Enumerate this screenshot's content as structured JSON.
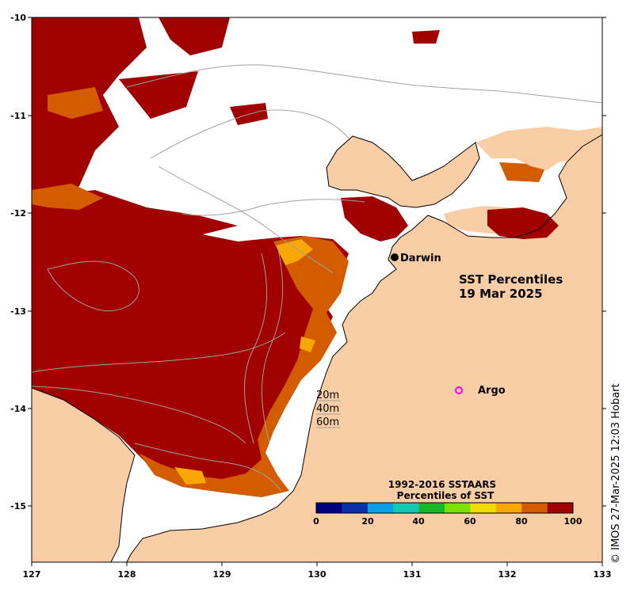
{
  "map": {
    "title_line1": "SST Percentiles",
    "title_line2": "19 Mar 2025",
    "x_ticks": [
      "127",
      "128",
      "129",
      "130",
      "131",
      "132",
      "133"
    ],
    "y_ticks": [
      "-10",
      "-11",
      "-12",
      "-13",
      "-14",
      "-15"
    ],
    "places": {
      "darwin": "Darwin",
      "argo": "Argo"
    },
    "depth_legend": [
      "20m",
      "40m",
      "60m"
    ],
    "colorbar": {
      "title_line1": "1992-2016 SSTAARS",
      "title_line2": "Percentiles of SST",
      "tick_labels": [
        "0",
        "20",
        "40",
        "60",
        "80",
        "100"
      ],
      "colors": [
        "#00007f",
        "#0a2fa8",
        "#0a9fe6",
        "#13c8b0",
        "#16b82a",
        "#7ee000",
        "#f0dc00",
        "#f8a800",
        "#d45c00",
        "#a00000"
      ]
    },
    "credit": "© IMOS 27-Mar-2025 12:03 Hobart",
    "palette": {
      "land": "#f9cda5",
      "ocean_nodata": "#ffffff",
      "p90_100": "#a00000",
      "p80_90": "#d45c00",
      "p70_80": "#f8a800",
      "contour": "#a0a0a0",
      "argo": "#ff00ff"
    }
  }
}
